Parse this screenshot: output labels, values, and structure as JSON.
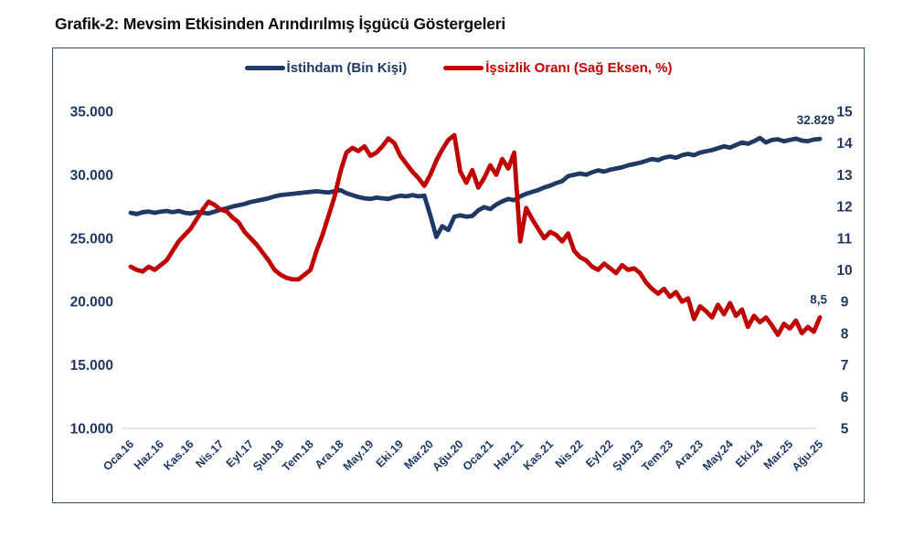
{
  "page": {
    "title": "Grafik-2: Mevsim Etkisinden Arındırılmış İşgücü Göstergeleri"
  },
  "colors": {
    "navy": "#1F3864",
    "red": "#C00000",
    "grid": "#D9D9D9",
    "border": "#2E4F8F"
  },
  "chart_data": {
    "type": "line",
    "title": "Grafik-2: Mevsim Etkisinden Arındırılmış İşgücü Göstergeleri",
    "legend_position": "top-center",
    "grid": "horizontal line at bottom value only",
    "n_points": 116,
    "x_start_label": "Oca.16",
    "x_end_label": "Ağu.25",
    "x_tick_labels": [
      "Oca.16",
      "Haz.16",
      "Kas.16",
      "Nis.17",
      "Eyl.17",
      "Şub.18",
      "Tem.18",
      "Ara.18",
      "May.19",
      "Eki.19",
      "Mar.20",
      "Ağu.20",
      "Oca.21",
      "Haz.21",
      "Kas.21",
      "Nis.22",
      "Eyl.22",
      "Şub.23",
      "Tem.23",
      "Ara.23",
      "May.24",
      "Eki.24",
      "Mar.25",
      "Ağu.25"
    ],
    "x_tick_step_months": 5,
    "left_axis": {
      "min": 10000,
      "max": 35000,
      "ticks": [
        "35.000",
        "30.000",
        "25.000",
        "20.000",
        "15.000",
        "10.000"
      ]
    },
    "right_axis": {
      "min": 5,
      "max": 15,
      "ticks": [
        "15",
        "14",
        "13",
        "12",
        "11",
        "10",
        "9",
        "8",
        "7",
        "6",
        "5"
      ]
    },
    "series": [
      {
        "name": "İstihdam (Bin Kişi)",
        "axis": "left",
        "color": "#1F3864",
        "values": [
          27000,
          26900,
          27050,
          27100,
          27000,
          27100,
          27150,
          27050,
          27150,
          27000,
          26950,
          27050,
          27000,
          26950,
          27100,
          27250,
          27350,
          27500,
          27600,
          27700,
          27850,
          27950,
          28050,
          28150,
          28300,
          28400,
          28450,
          28500,
          28550,
          28600,
          28650,
          28700,
          28650,
          28600,
          28700,
          28800,
          28550,
          28400,
          28250,
          28150,
          28100,
          28200,
          28150,
          28100,
          28250,
          28350,
          28300,
          28400,
          28300,
          28350,
          26800,
          25100,
          25950,
          25650,
          26700,
          26800,
          26700,
          26750,
          27200,
          27450,
          27300,
          27650,
          27900,
          28100,
          28000,
          28300,
          28500,
          28650,
          28800,
          29000,
          29150,
          29350,
          29500,
          29900,
          30000,
          30100,
          30000,
          30200,
          30350,
          30250,
          30400,
          30500,
          30600,
          30750,
          30850,
          30950,
          31100,
          31250,
          31150,
          31350,
          31450,
          31350,
          31550,
          31650,
          31550,
          31750,
          31850,
          31950,
          32100,
          32250,
          32150,
          32350,
          32550,
          32450,
          32650,
          32900,
          32550,
          32750,
          32800,
          32650,
          32750,
          32850,
          32700,
          32650,
          32780,
          32829
        ]
      },
      {
        "name": "İşsizlik Oranı (Sağ Eksen, %)",
        "axis": "right",
        "color": "#C00000",
        "values": [
          10.1,
          10.0,
          9.95,
          10.1,
          10.0,
          10.15,
          10.3,
          10.6,
          10.9,
          11.1,
          11.3,
          11.6,
          11.9,
          12.15,
          12.05,
          11.9,
          11.85,
          11.65,
          11.5,
          11.2,
          11.0,
          10.8,
          10.55,
          10.3,
          10.0,
          9.85,
          9.75,
          9.7,
          9.7,
          9.85,
          10.0,
          10.6,
          11.1,
          11.7,
          12.3,
          13.1,
          13.7,
          13.85,
          13.75,
          13.9,
          13.6,
          13.7,
          13.9,
          14.15,
          14.0,
          13.6,
          13.35,
          13.1,
          12.9,
          12.65,
          13.0,
          13.45,
          13.8,
          14.1,
          14.25,
          13.1,
          12.75,
          13.15,
          12.6,
          12.9,
          13.3,
          13.0,
          13.5,
          13.2,
          13.7,
          10.9,
          11.95,
          11.6,
          11.3,
          11.0,
          11.2,
          11.1,
          10.9,
          11.15,
          10.6,
          10.4,
          10.3,
          10.1,
          10.0,
          10.2,
          10.05,
          9.9,
          10.15,
          10.0,
          10.05,
          9.9,
          9.6,
          9.4,
          9.25,
          9.4,
          9.15,
          9.3,
          9.0,
          9.1,
          8.45,
          8.85,
          8.7,
          8.5,
          8.9,
          8.6,
          8.95,
          8.55,
          8.75,
          8.2,
          8.55,
          8.35,
          8.5,
          8.25,
          7.95,
          8.3,
          8.15,
          8.4,
          8.0,
          8.2,
          8.05,
          8.5
        ]
      }
    ],
    "annotations": [
      {
        "text": "32.829",
        "series": 0,
        "color": "#1F3864"
      },
      {
        "text": "8,5",
        "series": 1,
        "color": "#1F3864"
      }
    ]
  }
}
